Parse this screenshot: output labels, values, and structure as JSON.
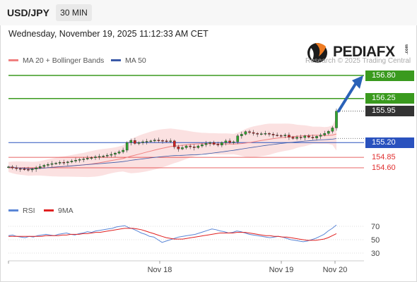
{
  "header": {
    "symbol": "USD/JPY",
    "timeframe": "30 MIN",
    "datetime": "Wednesday, November 19, 2025 11:12:33 AM CET"
  },
  "branding": {
    "logo_text": "PEDIAFX",
    "logo_suffix": ".com",
    "copyright": "Research © 2025 Trading Central"
  },
  "colors": {
    "resistance": "#3a9a1e",
    "support": "#2a52be",
    "target": "#e03030",
    "ma20": "#f08080",
    "ma50": "#3a5aa8",
    "rsi": "#5a86d6",
    "rsi_ma": "#e02020",
    "arrow": "#2a62b8",
    "candle_up": "#2fa52f",
    "candle_down": "#cc2222"
  },
  "chart_data": [
    {
      "type": "candlestick",
      "symbol": "USD/JPY",
      "interval": "30 MIN",
      "legend": [
        "MA 20 + Bollinger Bands",
        "MA 50"
      ],
      "ylim": [
        154.4,
        157.1
      ],
      "x_labels": [
        "Nov 18",
        "Nov 19",
        "Nov 20"
      ],
      "current_price": 155.95,
      "projected_target": 156.8,
      "levels": [
        {
          "value": 156.8,
          "label": "156.80",
          "kind": "resistance"
        },
        {
          "value": 156.25,
          "label": "156.25",
          "kind": "resistance"
        },
        {
          "value": 155.95,
          "label": "155.95",
          "kind": "current"
        },
        {
          "value": 155.2,
          "label": "155.20",
          "kind": "pivot"
        },
        {
          "value": 154.85,
          "label": "154.85",
          "kind": "target"
        },
        {
          "value": 154.6,
          "label": "154.60",
          "kind": "target"
        }
      ],
      "close": [
        154.62,
        154.6,
        154.58,
        154.57,
        154.56,
        154.55,
        154.57,
        154.6,
        154.63,
        154.66,
        154.68,
        154.7,
        154.71,
        154.73,
        154.72,
        154.74,
        154.76,
        154.78,
        154.8,
        154.81,
        154.83,
        154.84,
        154.86,
        154.87,
        154.88,
        154.9,
        154.92,
        154.95,
        154.98,
        155.02,
        155.2,
        155.25,
        155.18,
        155.2,
        155.22,
        155.23,
        155.24,
        155.26,
        155.25,
        155.24,
        155.23,
        155.24,
        155.1,
        155.05,
        155.08,
        155.12,
        155.1,
        155.08,
        155.12,
        155.15,
        155.18,
        155.2,
        155.16,
        155.14,
        155.2,
        155.24,
        155.2,
        155.22,
        155.36,
        155.4,
        155.46,
        155.44,
        155.42,
        155.4,
        155.41,
        155.42,
        155.4,
        155.38,
        155.37,
        155.36,
        155.38,
        155.33,
        155.3,
        155.33,
        155.32,
        155.36,
        155.33,
        155.31,
        155.35,
        155.38,
        155.42,
        155.47,
        155.55,
        155.95
      ]
    },
    {
      "type": "line",
      "title": "RSI",
      "legend": [
        "RSI",
        "9MA"
      ],
      "ylim": [
        20,
        80
      ],
      "y_ticks": [
        70,
        50,
        30
      ],
      "x_labels": [
        "Nov 18",
        "Nov 19",
        "Nov 20"
      ],
      "series": [
        {
          "name": "RSI",
          "values": [
            56,
            57,
            55,
            54,
            53,
            55,
            54,
            56,
            57,
            58,
            57,
            56,
            58,
            59,
            60,
            58,
            57,
            59,
            60,
            62,
            61,
            63,
            64,
            65,
            66,
            67,
            69,
            70,
            71,
            68,
            66,
            63,
            60,
            58,
            55,
            54,
            50,
            46,
            48,
            50,
            52,
            54,
            55,
            56,
            57,
            58,
            60,
            62,
            64,
            66,
            65,
            63,
            62,
            60,
            61,
            63,
            62,
            60,
            58,
            57,
            56,
            55,
            54,
            53,
            54,
            55,
            54,
            52,
            50,
            49,
            48,
            47,
            48,
            50,
            52,
            55,
            58,
            63,
            67,
            72
          ]
        },
        {
          "name": "9MA",
          "values": [
            55,
            55,
            55,
            55,
            55,
            55,
            55,
            55,
            55,
            56,
            56,
            56,
            56,
            57,
            57,
            58,
            58,
            58,
            59,
            59,
            60,
            61,
            61,
            62,
            63,
            64,
            65,
            66,
            67,
            67,
            67,
            66,
            65,
            63,
            61,
            59,
            57,
            55,
            53,
            52,
            51,
            51,
            51,
            52,
            53,
            54,
            55,
            56,
            57,
            58,
            59,
            60,
            60,
            60,
            60,
            61,
            61,
            61,
            60,
            59,
            58,
            57,
            56,
            56,
            55,
            55,
            54,
            54,
            53,
            52,
            51,
            50,
            49,
            49,
            49,
            50,
            51,
            53,
            56,
            59
          ]
        }
      ]
    }
  ]
}
